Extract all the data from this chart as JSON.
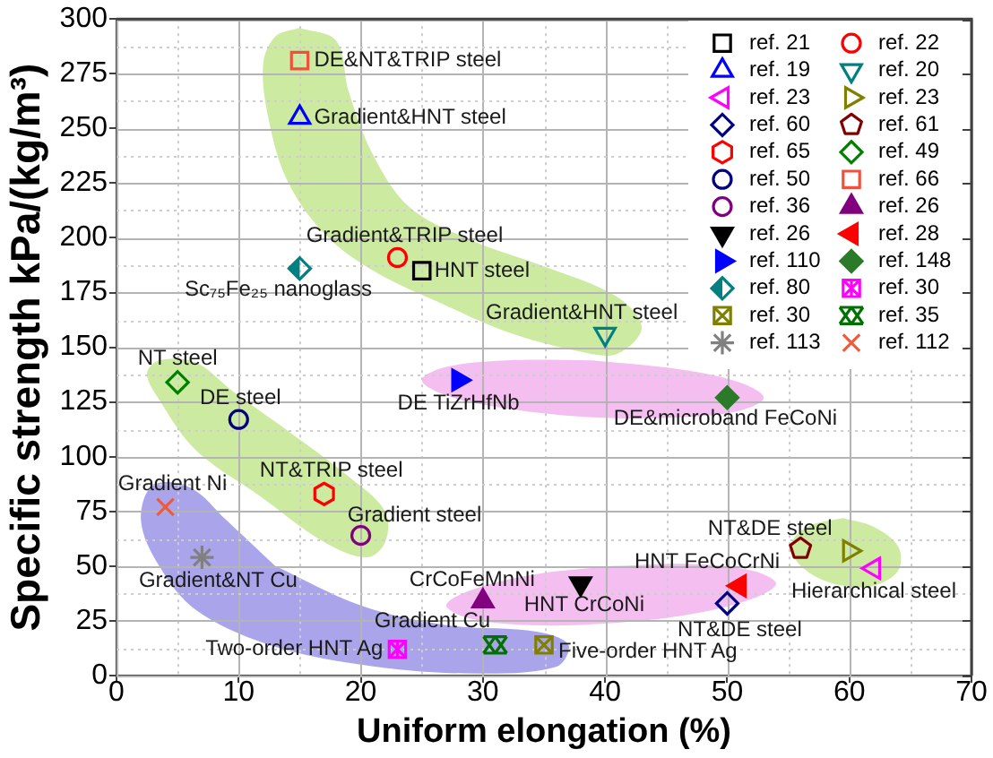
{
  "chart_data": {
    "type": "scatter",
    "xlabel": "Uniform elongation (%)",
    "ylabel": "Specific strength kPa/(kg/m³)",
    "xlim": [
      0,
      70
    ],
    "ylim": [
      0,
      300
    ],
    "xticks": [
      0,
      {
        "value": 5,
        "label": null
      },
      10,
      {
        "value": 15,
        "label": null
      },
      20,
      {
        "value": 25,
        "label": null
      },
      30,
      {
        "value": 35,
        "label": null
      },
      40,
      {
        "value": 45,
        "label": null
      },
      50,
      {
        "value": 55,
        "label": null
      },
      60,
      {
        "value": 65,
        "label": null
      },
      70
    ],
    "yticks": [
      0,
      {
        "value": 12.5,
        "label": null
      },
      25,
      {
        "value": 37.5,
        "label": null
      },
      50,
      {
        "value": 62.5,
        "label": null
      },
      75,
      {
        "value": 87.5,
        "label": null
      },
      100,
      {
        "value": 112.5,
        "label": null
      },
      125,
      {
        "value": 137.5,
        "label": null
      },
      150,
      {
        "value": 162.5,
        "label": null
      },
      175,
      {
        "value": 187.5,
        "label": null
      },
      200,
      {
        "value": 212.5,
        "label": null
      },
      225,
      {
        "value": 237.5,
        "label": null
      },
      250,
      {
        "value": 262.5,
        "label": null
      },
      275,
      {
        "value": 287.5,
        "label": null
      },
      300
    ],
    "grid": true,
    "legend": "top right",
    "series": [
      {
        "type": "area",
        "color": "#cdeba0",
        "x": [
          15,
          18,
          19,
          21,
          24,
          29,
          35,
          41,
          43,
          41,
          38,
          32,
          27,
          21,
          17,
          14,
          12.5,
          12,
          13,
          15
        ],
        "values": [
          296,
          290,
          267,
          238,
          214,
          199,
          187,
          173,
          159,
          147,
          148,
          157,
          169,
          185,
          202,
          226,
          253,
          279,
          292,
          296
        ]
      },
      {
        "type": "area",
        "color": "#cdeba0",
        "x": [
          14,
          19,
          22,
          22,
          20.5,
          17,
          12,
          6.5,
          3.5,
          2.5,
          3.5,
          6.5,
          9.5,
          14
        ],
        "values": [
          112,
          91,
          75,
          61,
          54,
          61,
          81,
          103,
          126,
          138,
          144,
          143,
          130,
          112
        ]
      },
      {
        "type": "area",
        "color": "#cdeba0",
        "x": [
          59.5,
          62,
          64,
          64,
          62,
          59.5,
          57,
          55.5,
          55.5,
          57,
          59.5
        ],
        "values": [
          72,
          68,
          59,
          48,
          41,
          41,
          46,
          54,
          63,
          69,
          72
        ]
      },
      {
        "type": "area",
        "color": "#f5bef0",
        "x": [
          39,
          32,
          27,
          25,
          27,
          32,
          39,
          46,
          51,
          53,
          51,
          46,
          39
        ],
        "values": [
          144,
          144,
          141,
          135,
          128,
          122,
          118,
          118,
          121,
          127,
          134,
          140,
          144
        ]
      },
      {
        "type": "area",
        "color": "#f5bef0",
        "x": [
          40.5,
          34,
          29,
          27,
          29,
          34,
          40.5,
          47,
          52,
          54,
          52,
          47,
          40.5
        ],
        "values": [
          50,
          46,
          39,
          32,
          26,
          23,
          24,
          28,
          35,
          42,
          48,
          51,
          50
        ]
      },
      {
        "type": "area",
        "color": "#aaa5eb",
        "x": [
          13,
          20,
          27,
          34.5,
          37,
          36,
          28.5,
          20,
          12.5,
          6.5,
          3.5,
          2,
          3,
          6,
          9,
          13
        ],
        "values": [
          50,
          32,
          23,
          20,
          14,
          4,
          1,
          5,
          14,
          30,
          50,
          71,
          87,
          86,
          71,
          50
        ]
      },
      {
        "name": "ref. 21",
        "color": "#000000",
        "marker": "square",
        "x": [
          25
        ],
        "values": [
          185
        ]
      },
      {
        "name": "ref. 19",
        "color": "#0000ff",
        "marker": "triangle",
        "x": [
          15
        ],
        "values": [
          255
        ]
      },
      {
        "name": "ref. 23",
        "color": "#ff00ff",
        "marker": "triangle-left",
        "x": [
          62
        ],
        "values": [
          49
        ]
      },
      {
        "name": "ref. 60",
        "color": "#000080",
        "marker": "diamond",
        "x": [
          50
        ],
        "values": [
          33
        ]
      },
      {
        "name": "ref. 65",
        "color": "#ff0000",
        "x": [
          17
        ],
        "values": [
          83
        ]
      },
      {
        "name": "ref. 50",
        "color": "#000080",
        "marker": "circle",
        "x": [
          10
        ],
        "values": [
          117
        ]
      },
      {
        "name": "ref. 36",
        "color": "#800080",
        "marker": "circle",
        "x": [
          20
        ],
        "values": [
          64
        ]
      },
      {
        "name": "ref. 26",
        "color": "#000000",
        "marker": "triangle-down-filled",
        "x": [
          38
        ],
        "values": [
          42
        ]
      },
      {
        "name": "ref. 110",
        "color": "#0000ff",
        "marker": "triangle-right-filled",
        "x": [
          28
        ],
        "values": [
          135
        ]
      },
      {
        "name": "ref. 80",
        "color": "#008080",
        "marker": "diamond-half",
        "x": [
          15
        ],
        "values": [
          186
        ]
      },
      {
        "name": "ref. 30",
        "color": "#808000",
        "marker": "square-x",
        "x": [
          35
        ],
        "values": [
          14
        ]
      },
      {
        "name": "ref. 113",
        "color": "#808080",
        "marker": "cross-plus",
        "x": [
          7
        ],
        "values": [
          54
        ]
      },
      {
        "name": "ref. 22",
        "color": "#ff0000",
        "marker": "circle",
        "x": [
          23
        ],
        "values": [
          191
        ]
      },
      {
        "name": "ref. 20",
        "color": "#008080",
        "marker": "triangle-down",
        "x": [
          40
        ],
        "values": [
          156
        ]
      },
      {
        "name": "ref. 23",
        "color": "#808000",
        "marker": "triangle-right",
        "x": [
          60
        ],
        "values": [
          57
        ]
      },
      {
        "name": "ref. 61",
        "color": "#800000",
        "x": [
          56
        ],
        "values": [
          58
        ]
      },
      {
        "name": "ref. 49",
        "color": "#008000",
        "marker": "diamond",
        "x": [
          5
        ],
        "values": [
          134
        ]
      },
      {
        "name": "ref. 66",
        "color": "#f0503c",
        "marker": "square",
        "x": [
          15
        ],
        "values": [
          281
        ]
      },
      {
        "name": "ref. 26",
        "color": "#800080",
        "marker": "triangle-filled",
        "x": [
          30
        ],
        "values": [
          34
        ]
      },
      {
        "name": "ref. 28",
        "color": "#ff0000",
        "marker": "triangle-left-filled",
        "x": [
          51
        ],
        "values": [
          41
        ]
      },
      {
        "name": "ref. 148",
        "color": "#2a7a2a",
        "marker": "diamond-filled",
        "x": [
          50
        ],
        "values": [
          127
        ]
      },
      {
        "name": "ref. 30",
        "color": "#ff00ff",
        "marker": "square-star",
        "x": [
          23
        ],
        "values": [
          12
        ]
      },
      {
        "name": "ref. 35",
        "color": "#007000",
        "marker": "cross-double",
        "x": [
          31
        ],
        "values": [
          14
        ]
      },
      {
        "name": "ref. 112",
        "color": "#f05a3c",
        "marker": "cross",
        "x": [
          4
        ],
        "values": [
          77
        ]
      }
    ],
    "annotations": [
      {
        "text": "DE&NT&TRIP steel",
        "x": 15,
        "y": 281
      },
      {
        "text": "Gradient&HNT steel",
        "x": 15,
        "y": 255
      },
      {
        "text": "Gradient&TRIP steel",
        "x": 23,
        "y": 191
      },
      {
        "text": "HNT steel",
        "x": 25,
        "y": 185
      },
      {
        "text": "Sc₇₅Fe₂₅ nanoglass",
        "x": 15,
        "y": 186
      },
      {
        "text": "Gradient&HNT steel",
        "x": 40,
        "y": 156
      },
      {
        "text": "NT steel",
        "x": 5,
        "y": 134
      },
      {
        "text": "DE steel",
        "x": 10,
        "y": 117
      },
      {
        "text": "DE TiZrHfNb",
        "x": 28,
        "y": 135
      },
      {
        "text": "DE&microband FeCoNi",
        "x": 50,
        "y": 127
      },
      {
        "text": "NT&TRIP steel",
        "x": 17,
        "y": 83
      },
      {
        "text": "Gradient steel",
        "x": 20,
        "y": 64
      },
      {
        "text": "Gradient Ni",
        "x": 4,
        "y": 77
      },
      {
        "text": "Gradient&NT Cu",
        "x": 7,
        "y": 54
      },
      {
        "text": "CrCoFeMnNi",
        "x": 30,
        "y": 34
      },
      {
        "text": "HNT CrCoNi",
        "x": 38,
        "y": 42
      },
      {
        "text": "HNT FeCoCrNi",
        "x": 51,
        "y": 41
      },
      {
        "text": "NT&DE steel",
        "x": 50,
        "y": 33
      },
      {
        "text": "Gradient Cu",
        "x": 31,
        "y": 14
      },
      {
        "text": "Two-order HNT Ag",
        "x": 23,
        "y": 12
      },
      {
        "text": "Five-order HNT Ag",
        "x": 35,
        "y": 14
      },
      {
        "text": "NT&DE steel",
        "x": 56,
        "y": 58
      },
      {
        "text": "Hierarchical steel",
        "x": 62,
        "y": 49
      }
    ]
  }
}
